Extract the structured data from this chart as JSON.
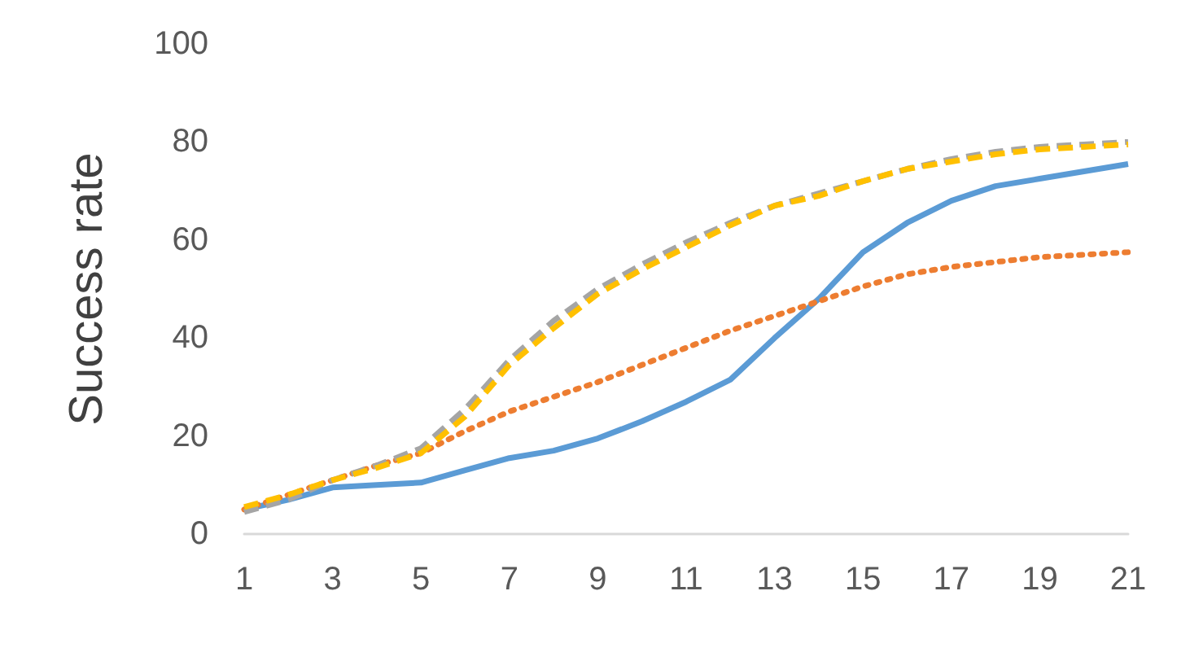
{
  "chart_data": {
    "type": "line",
    "ylabel": "Success rate",
    "x": [
      1,
      2,
      3,
      4,
      5,
      6,
      7,
      8,
      9,
      10,
      11,
      12,
      13,
      14,
      15,
      16,
      17,
      18,
      19,
      20,
      21
    ],
    "xlim": [
      1,
      21
    ],
    "xticks": [
      1,
      3,
      5,
      7,
      9,
      11,
      13,
      15,
      17,
      19,
      21
    ],
    "ylim": [
      0,
      100
    ],
    "yticks": [
      0,
      20,
      40,
      60,
      80,
      100
    ],
    "grid": false,
    "marker": "none",
    "series": [
      {
        "color": "#5b9bd5",
        "line_style": "solid",
        "values": [
          5,
          7,
          9.5,
          10,
          10.5,
          13,
          15.5,
          17,
          19.5,
          23,
          27,
          31.5,
          40,
          48,
          57.5,
          63.5,
          68,
          71,
          72.5,
          74,
          75.5
        ]
      },
      {
        "color": "#ed7d31",
        "line_style": "dotted",
        "values": [
          5,
          8,
          11,
          14,
          16.5,
          21,
          25,
          28,
          31,
          34.5,
          38,
          41.5,
          44.5,
          47.5,
          50.5,
          53,
          54.5,
          55.5,
          56.5,
          57,
          57.5
        ]
      },
      {
        "color": "#a5a5a5",
        "line_style": "dashed",
        "values": [
          4.5,
          7,
          11,
          14,
          17.5,
          25.5,
          35.5,
          43.5,
          50,
          55,
          59.5,
          63.5,
          67,
          69.5,
          72,
          74.5,
          76.5,
          78,
          79,
          79.5,
          80
        ]
      },
      {
        "color": "#ffc000",
        "line_style": "dashed",
        "values": [
          5.5,
          8,
          11,
          13.5,
          16.5,
          24,
          34.5,
          42,
          49,
          54,
          58.5,
          63,
          67,
          69,
          72,
          74.5,
          76,
          77.5,
          78.5,
          79,
          79.5
        ]
      }
    ]
  }
}
